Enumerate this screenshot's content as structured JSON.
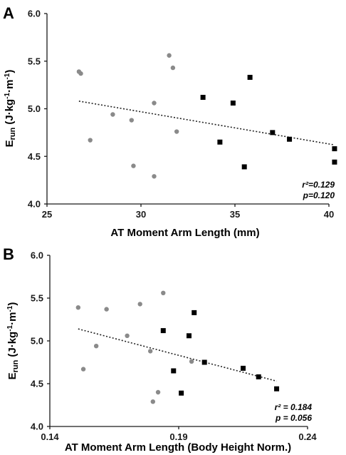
{
  "chart_data": [
    {
      "panel": "A",
      "type": "scatter",
      "title": "",
      "xlabel": "AT Moment Arm Length (mm)",
      "ylabel_main": "E",
      "ylabel_sub": "run",
      "ylabel_units": "(J·kg",
      "ylabel_units_mid": "·m",
      "ylabel_units_end": ")",
      "ylabel_exp": "-1",
      "xlim": [
        25,
        40
      ],
      "ylim": [
        4.0,
        6.0
      ],
      "xticks": [
        "25",
        "30",
        "35",
        "40"
      ],
      "xtick_values": [
        25,
        30,
        35,
        40
      ],
      "yticks": [
        "4.0",
        "4.5",
        "5.0",
        "5.5",
        "6.0"
      ],
      "ytick_values": [
        4.0,
        4.5,
        5.0,
        5.5,
        6.0
      ],
      "stats": [
        "r²=0.129",
        "p=0.120"
      ],
      "series": [
        {
          "marker": "circle",
          "color": "#8a8a8a",
          "points": [
            {
              "x": 26.7,
              "y": 5.39
            },
            {
              "x": 26.8,
              "y": 5.37
            },
            {
              "x": 27.3,
              "y": 4.67
            },
            {
              "x": 28.5,
              "y": 4.94
            },
            {
              "x": 29.5,
              "y": 4.88
            },
            {
              "x": 29.6,
              "y": 4.4
            },
            {
              "x": 30.7,
              "y": 5.06
            },
            {
              "x": 30.7,
              "y": 4.29
            },
            {
              "x": 31.5,
              "y": 5.56
            },
            {
              "x": 31.7,
              "y": 5.43
            },
            {
              "x": 31.9,
              "y": 4.76
            }
          ]
        },
        {
          "marker": "square",
          "color": "#000000",
          "points": [
            {
              "x": 33.3,
              "y": 5.12
            },
            {
              "x": 34.2,
              "y": 4.65
            },
            {
              "x": 34.9,
              "y": 5.06
            },
            {
              "x": 35.5,
              "y": 4.39
            },
            {
              "x": 35.8,
              "y": 5.33
            },
            {
              "x": 37.0,
              "y": 4.75
            },
            {
              "x": 37.9,
              "y": 4.68
            },
            {
              "x": 40.3,
              "y": 4.58
            },
            {
              "x": 40.3,
              "y": 4.44
            }
          ]
        }
      ],
      "trendline": {
        "x": [
          26.7,
          40.3
        ],
        "y": [
          5.08,
          4.62
        ]
      }
    },
    {
      "panel": "B",
      "type": "scatter",
      "title": "",
      "xlabel": "AT Moment Arm Length (Body Height Norm.)",
      "ylabel_main": "E",
      "ylabel_sub": "run",
      "ylabel_units": "(J·kg",
      "ylabel_units_mid": "·m",
      "ylabel_units_end": ")",
      "ylabel_exp": "-1",
      "xlim": [
        0.14,
        0.24
      ],
      "ylim": [
        4.0,
        6.0
      ],
      "xticks": [
        "0.14",
        "0.19",
        "0.24"
      ],
      "xtick_values": [
        0.14,
        0.19,
        0.24
      ],
      "yticks": [
        "4.0",
        "4.5",
        "5.0",
        "5.5",
        "6.0"
      ],
      "ytick_values": [
        4.0,
        4.5,
        5.0,
        5.5,
        6.0
      ],
      "stats": [
        "r² = 0.184",
        "p = 0.056"
      ],
      "series": [
        {
          "marker": "circle",
          "color": "#8a8a8a",
          "points": [
            {
              "x": 0.151,
              "y": 5.39
            },
            {
              "x": 0.153,
              "y": 4.67
            },
            {
              "x": 0.158,
              "y": 4.94
            },
            {
              "x": 0.162,
              "y": 5.37
            },
            {
              "x": 0.17,
              "y": 5.06
            },
            {
              "x": 0.175,
              "y": 5.43
            },
            {
              "x": 0.179,
              "y": 4.88
            },
            {
              "x": 0.18,
              "y": 4.29
            },
            {
              "x": 0.182,
              "y": 4.4
            },
            {
              "x": 0.184,
              "y": 5.56
            },
            {
              "x": 0.195,
              "y": 4.76
            }
          ]
        },
        {
          "marker": "square",
          "color": "#000000",
          "points": [
            {
              "x": 0.184,
              "y": 5.12
            },
            {
              "x": 0.188,
              "y": 4.65
            },
            {
              "x": 0.191,
              "y": 4.39
            },
            {
              "x": 0.194,
              "y": 5.06
            },
            {
              "x": 0.196,
              "y": 5.33
            },
            {
              "x": 0.2,
              "y": 4.75
            },
            {
              "x": 0.215,
              "y": 4.68
            },
            {
              "x": 0.221,
              "y": 4.58
            },
            {
              "x": 0.228,
              "y": 4.44
            }
          ]
        }
      ],
      "trendline": {
        "x": [
          0.151,
          0.228
        ],
        "y": [
          5.14,
          4.53
        ]
      }
    }
  ]
}
